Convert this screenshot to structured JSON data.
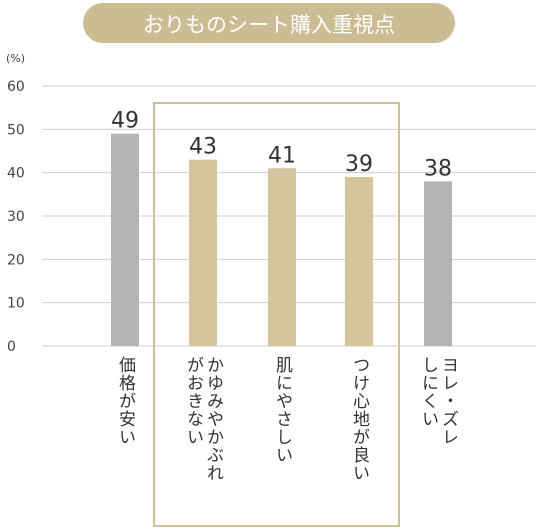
{
  "chart_data": {
    "type": "bar",
    "title": "おりものシート購入重視点",
    "unit": "(%)",
    "ylim": [
      0,
      60
    ],
    "yticks": [
      0,
      10,
      20,
      30,
      40,
      50,
      60
    ],
    "grid": true,
    "categories": [
      "価格が安い",
      "かゆみやかぶれがおきない",
      "肌にやさしい",
      "つけ心地が良い",
      "ヨレ・ズレしにくい"
    ],
    "category_lines": [
      [
        "価格が安い"
      ],
      [
        "かゆみやかぶれ",
        "がおきない"
      ],
      [
        "肌にやさしい"
      ],
      [
        "つけ心地が良い"
      ],
      [
        "ヨレ・ズレ",
        "しにくい"
      ]
    ],
    "values": [
      49,
      43,
      41,
      39,
      38
    ],
    "bar_colors": [
      "#b3b3b5",
      "#d4c59d",
      "#d4c59d",
      "#d4c59d",
      "#b3b3b5"
    ],
    "highlighted": [
      1,
      2,
      3
    ],
    "colors": {
      "title_bg": "#cbbc93",
      "title_text": "#ffffff",
      "highlight_frame": "#cdbf97",
      "grid": "#cfcfcf",
      "text": "#333333",
      "axis_text": "#444444"
    }
  }
}
